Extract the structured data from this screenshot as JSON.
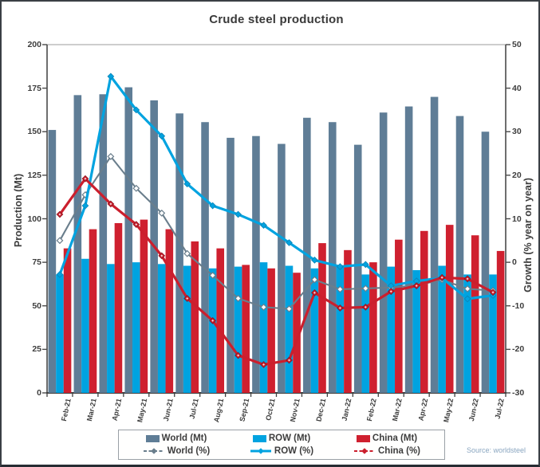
{
  "chart_data": {
    "type": "combo-bar-line",
    "title": "Crude steel production",
    "categories": [
      "Feb-21",
      "Mar-21",
      "Apr-21",
      "May-21",
      "Jun-21",
      "Jul-21",
      "Aug-21",
      "Sep-21",
      "Oct-21",
      "Nov-21",
      "Dec-21",
      "Jan-22",
      "Feb-22",
      "Mar-22",
      "Apr-22",
      "May-22",
      "Jun-22",
      "Jul-22"
    ],
    "series": [
      {
        "name": "World (Mt)",
        "kind": "bar",
        "axis": "left",
        "color_key": "world",
        "values": [
          151,
          171,
          171.5,
          175.5,
          168,
          160.5,
          155.5,
          146.5,
          147.5,
          143,
          158,
          155.5,
          142.5,
          161,
          164.5,
          170,
          159,
          150
        ]
      },
      {
        "name": "ROW (Mt)",
        "kind": "bar",
        "axis": "left",
        "color_key": "row",
        "values": [
          68,
          77,
          74,
          75,
          74,
          73,
          71.5,
          72.5,
          75,
          73,
          71.5,
          72.5,
          68,
          72.5,
          70.5,
          73,
          68,
          68
        ]
      },
      {
        "name": "China (Mt)",
        "kind": "bar",
        "axis": "left",
        "color_key": "china",
        "values": [
          83,
          94,
          97.5,
          99.5,
          94,
          87,
          83,
          73.5,
          71.5,
          69,
          86,
          82,
          75,
          88,
          93,
          96.5,
          90.5,
          81.5
        ]
      },
      {
        "name": "World (%)",
        "kind": "line",
        "axis": "right",
        "color_key": "world_line",
        "dashed": true,
        "values": [
          5,
          15.5,
          24.3,
          17,
          11.3,
          2,
          -3,
          -8.3,
          -10.3,
          -10.7,
          -4,
          -6.2,
          -6,
          -5.8,
          -5.3,
          -4,
          -6.1,
          -6.5
        ]
      },
      {
        "name": "ROW (%)",
        "kind": "line",
        "axis": "right",
        "color_key": "row_line",
        "dashed": false,
        "values": [
          -2.8,
          13,
          42.7,
          35,
          29,
          18,
          13,
          11,
          8.5,
          4.5,
          0.5,
          -1,
          -0.5,
          -5.4,
          -4.3,
          -3.6,
          -8.4,
          -7.6
        ]
      },
      {
        "name": "China (%)",
        "kind": "line",
        "axis": "right",
        "color_key": "china_line",
        "dashed": true,
        "values": [
          11,
          19.2,
          13.4,
          8.7,
          1.5,
          -8.3,
          -13.4,
          -21.4,
          -23.5,
          -22.5,
          -7,
          -10.5,
          -10.3,
          -6.7,
          -5.4,
          -3.5,
          -3.8,
          -6.9
        ]
      }
    ],
    "left_axis": {
      "label": "Production (Mt)",
      "min": 0,
      "max": 200,
      "ticks": [
        200,
        175,
        150,
        125,
        100,
        75,
        50,
        25,
        0
      ]
    },
    "right_axis": {
      "label": "Growth (% year on year)",
      "min": -30,
      "max": 50,
      "ticks": [
        50,
        40,
        30,
        20,
        10,
        0,
        -10,
        -20,
        -30
      ]
    },
    "legend_position": "bottom",
    "grid": false
  },
  "colors": {
    "world": "#5F7D96",
    "row": "#00A3E0",
    "china": "#CF202F",
    "world_line": "#6A7E8C",
    "row_line": "#00A3E0",
    "china_line": "#CB1F2D",
    "axis_text": "#3D3D3D",
    "title_text": "#3A3A3A",
    "source_text": "#8AA6C0"
  },
  "source_note": "Source: worldsteel"
}
